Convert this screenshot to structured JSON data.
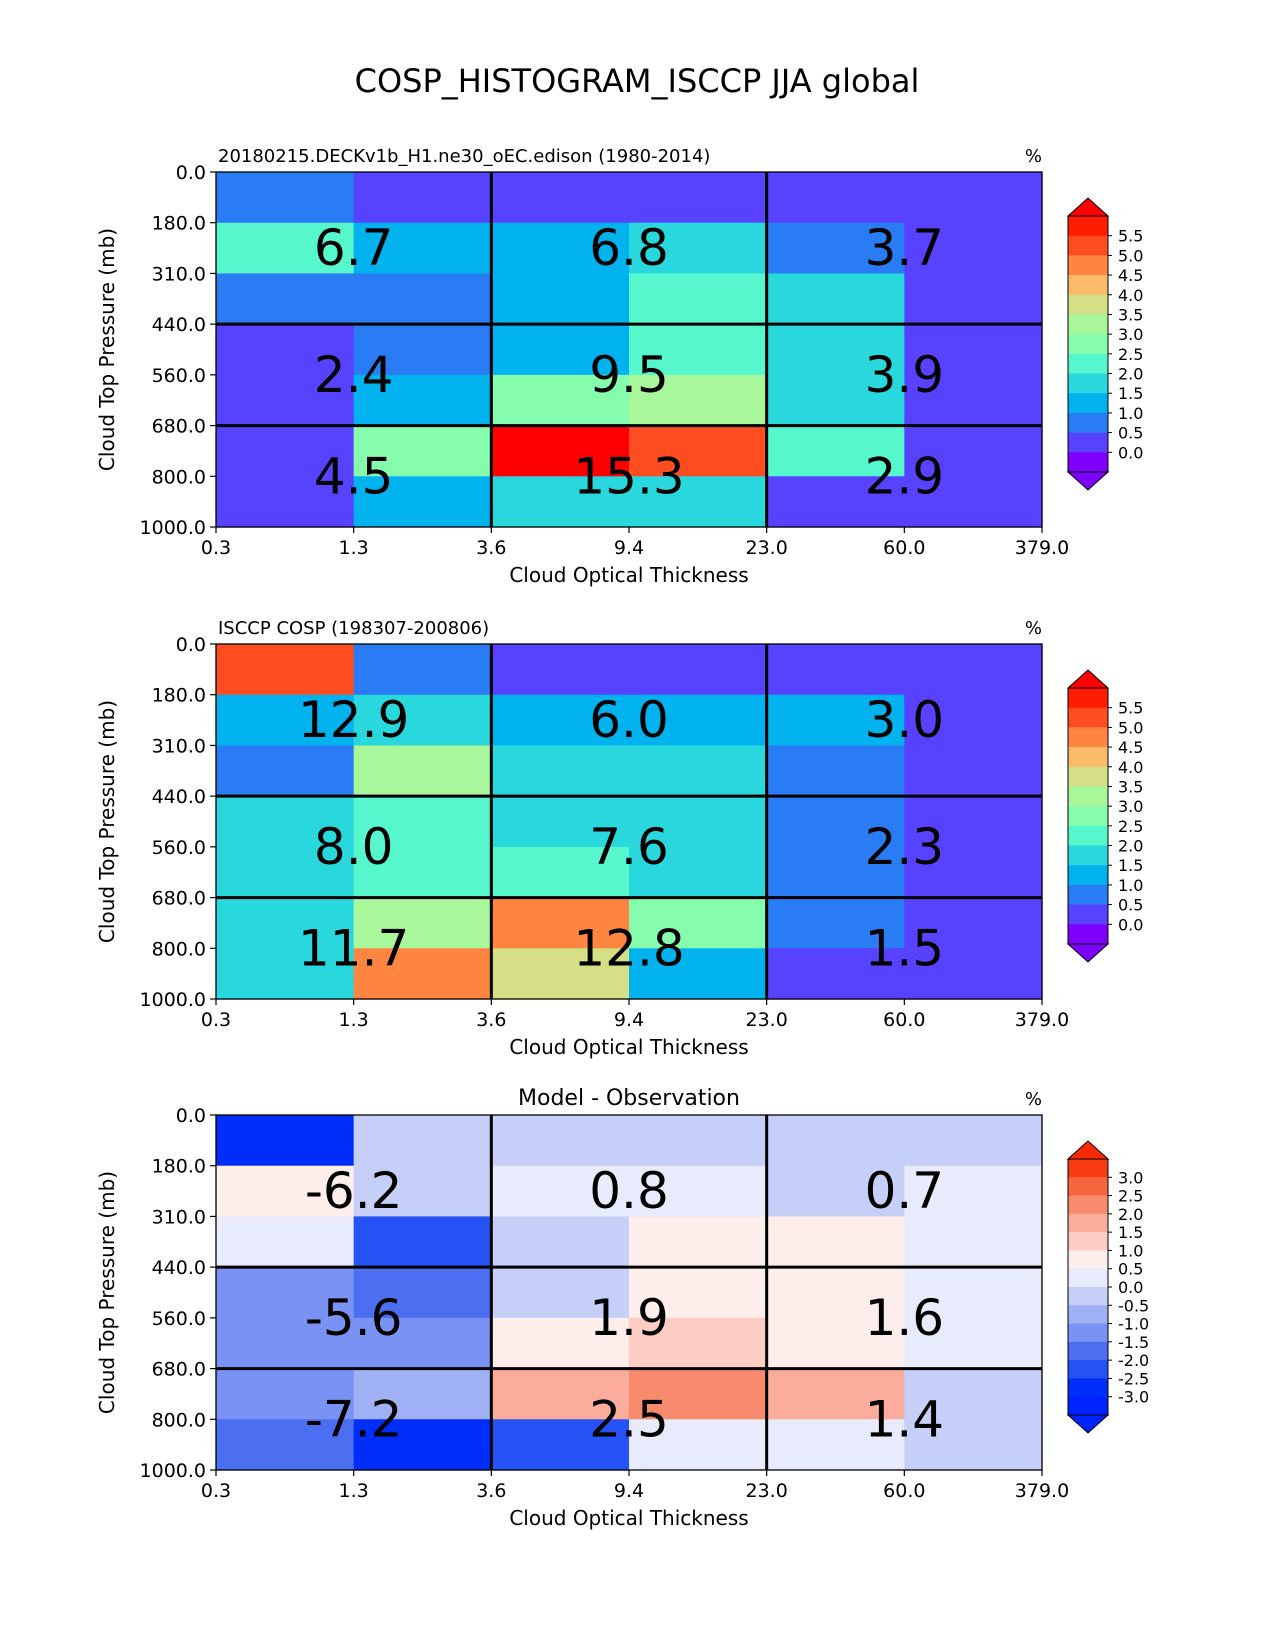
{
  "suptitle": "COSP_HISTOGRAM_ISCCP JJA global",
  "chart_data": [
    {
      "type": "heatmap",
      "title_left": "20180215.DECKv1b_H1.ne30_oEC.edison (1980-2014)",
      "title_center": "",
      "units": "%",
      "xlabel": "Cloud Optical Thickness",
      "ylabel": "Cloud Top Pressure (mb)",
      "x_ticks": [
        "0.3",
        "1.3",
        "3.6",
        "9.4",
        "23.0",
        "60.0",
        "379.0"
      ],
      "y_ticks": [
        "0.0",
        "180.0",
        "310.0",
        "440.0",
        "560.0",
        "680.0",
        "800.0",
        "1000.0"
      ],
      "cells": [
        [
          0.8,
          0.3,
          0.2,
          0.2,
          0.2,
          0.2
        ],
        [
          2.3,
          1.4,
          1.3,
          1.8,
          0.8,
          0.2
        ],
        [
          0.8,
          0.8,
          1.3,
          2.3,
          1.8,
          0.2
        ],
        [
          0.3,
          0.8,
          1.3,
          2.3,
          1.8,
          0.2
        ],
        [
          0.3,
          1.3,
          2.8,
          3.3,
          1.8,
          0.2
        ],
        [
          0.3,
          2.8,
          5.8,
          5.3,
          2.3,
          0.2
        ],
        [
          0.3,
          1.3,
          1.8,
          1.8,
          0.2,
          0.2
        ]
      ],
      "block_sums": [
        [
          "6.7",
          "6.8",
          "3.7"
        ],
        [
          "2.4",
          "9.5",
          "3.9"
        ],
        [
          "4.5",
          "15.3",
          "2.9"
        ]
      ],
      "colorbar": {
        "ticks": [
          "0.0",
          "0.5",
          "1.0",
          "1.5",
          "2.0",
          "2.5",
          "3.0",
          "3.5",
          "4.0",
          "4.5",
          "5.0",
          "5.5"
        ],
        "colors": [
          "#5742ff",
          "#2a7cf5",
          "#00b2ee",
          "#28d8dc",
          "#57f7cd",
          "#86fcad",
          "#a9f79b",
          "#d5df86",
          "#fbbb6a",
          "#ff8540",
          "#ff4d22",
          "#ff1c00"
        ],
        "under": "#8000ff",
        "over": "#ff0000"
      }
    },
    {
      "type": "heatmap",
      "title_left": "ISCCP COSP (198307-200806)",
      "title_center": "",
      "units": "%",
      "xlabel": "Cloud Optical Thickness",
      "ylabel": "Cloud Top Pressure (mb)",
      "x_ticks": [
        "0.3",
        "1.3",
        "3.6",
        "9.4",
        "23.0",
        "60.0",
        "379.0"
      ],
      "y_ticks": [
        "0.0",
        "180.0",
        "310.0",
        "440.0",
        "560.0",
        "680.0",
        "800.0",
        "1000.0"
      ],
      "cells": [
        [
          5.3,
          0.8,
          0.2,
          0.2,
          0.2,
          0.2
        ],
        [
          1.3,
          1.8,
          1.3,
          1.3,
          1.3,
          0.2
        ],
        [
          0.8,
          3.3,
          1.8,
          1.8,
          0.8,
          0.2
        ],
        [
          1.8,
          2.3,
          1.8,
          1.8,
          0.8,
          0.2
        ],
        [
          1.8,
          2.3,
          2.3,
          1.8,
          0.8,
          0.2
        ],
        [
          1.8,
          3.3,
          4.8,
          2.8,
          0.8,
          0.2
        ],
        [
          1.8,
          4.8,
          3.8,
          1.3,
          0.2,
          0.2
        ]
      ],
      "block_sums": [
        [
          "12.9",
          "6.0",
          "3.0"
        ],
        [
          "8.0",
          "7.6",
          "2.3"
        ],
        [
          "11.7",
          "12.8",
          "1.5"
        ]
      ],
      "colorbar": {
        "ticks": [
          "0.0",
          "0.5",
          "1.0",
          "1.5",
          "2.0",
          "2.5",
          "3.0",
          "3.5",
          "4.0",
          "4.5",
          "5.0",
          "5.5"
        ],
        "colors": [
          "#5742ff",
          "#2a7cf5",
          "#00b2ee",
          "#28d8dc",
          "#57f7cd",
          "#86fcad",
          "#a9f79b",
          "#d5df86",
          "#fbbb6a",
          "#ff8540",
          "#ff4d22",
          "#ff1c00"
        ],
        "under": "#8000ff",
        "over": "#ff0000"
      }
    },
    {
      "type": "heatmap",
      "title_left": "",
      "title_center": "Model - Observation",
      "units": "%",
      "xlabel": "Cloud Optical Thickness",
      "ylabel": "Cloud Top Pressure (mb)",
      "x_ticks": [
        "0.3",
        "1.3",
        "3.6",
        "9.4",
        "23.0",
        "60.0",
        "379.0"
      ],
      "y_ticks": [
        "0.0",
        "180.0",
        "310.0",
        "440.0",
        "560.0",
        "680.0",
        "800.0",
        "1000.0"
      ],
      "cells": [
        [
          -2.8,
          -0.2,
          -0.2,
          -0.2,
          -0.2,
          -0.2
        ],
        [
          0.8,
          -0.2,
          0.2,
          0.2,
          -0.2,
          0.2
        ],
        [
          0.2,
          -2.3,
          -0.2,
          0.8,
          0.8,
          0.2
        ],
        [
          -1.3,
          -1.8,
          -0.2,
          0.8,
          0.8,
          0.2
        ],
        [
          -1.3,
          -1.3,
          0.8,
          1.3,
          0.8,
          0.2
        ],
        [
          -1.3,
          -0.7,
          1.8,
          2.3,
          1.8,
          -0.2
        ],
        [
          -1.8,
          -2.8,
          -2.3,
          0.2,
          0.2,
          -0.2
        ]
      ],
      "block_sums": [
        [
          "-6.2",
          "0.8",
          "0.7"
        ],
        [
          "-5.6",
          "1.9",
          "1.6"
        ],
        [
          "-7.2",
          "2.5",
          "1.4"
        ]
      ],
      "colorbar": {
        "ticks": [
          "-3.0",
          "-2.5",
          "-2.0",
          "-1.5",
          "-1.0",
          "-0.5",
          "0.0",
          "0.5",
          "1.0",
          "1.5",
          "2.0",
          "2.5",
          "3.0"
        ],
        "colors": [
          "#002ef9",
          "#2552f5",
          "#4c6ff1",
          "#7a92f3",
          "#9fb0f5",
          "#c5cff8",
          "#e8ebfc",
          "#fdedeb",
          "#fdcdc3",
          "#fbac9a",
          "#f88a6e",
          "#f7663f",
          "#f93b14"
        ],
        "under": "#0022ff",
        "over": "#ff2a00"
      }
    }
  ]
}
